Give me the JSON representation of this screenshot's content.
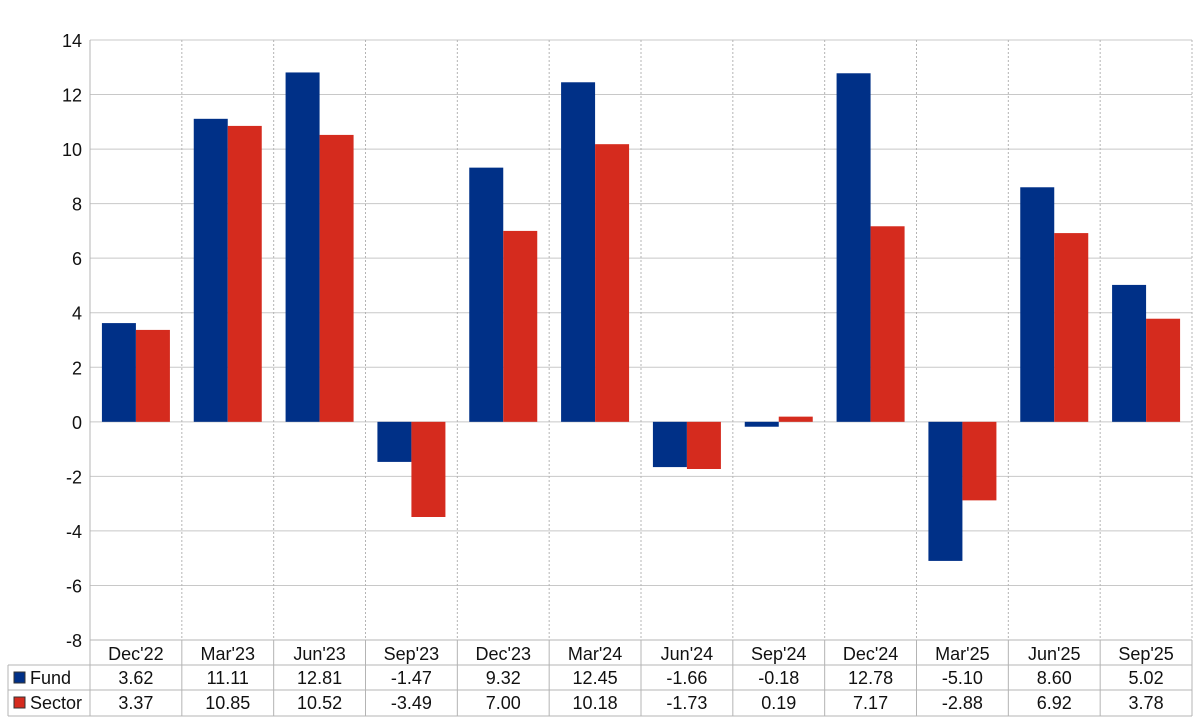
{
  "chart_data": {
    "type": "bar",
    "categories": [
      "Dec'22",
      "Mar'23",
      "Jun'23",
      "Sep'23",
      "Dec'23",
      "Mar'24",
      "Jun'24",
      "Sep'24",
      "Dec'24",
      "Mar'25",
      "Jun'25",
      "Sep'25"
    ],
    "series": [
      {
        "name": "Fund",
        "color": "#003087",
        "values": [
          3.62,
          11.11,
          12.81,
          -1.47,
          9.32,
          12.45,
          -1.66,
          -0.18,
          12.78,
          -5.1,
          8.6,
          5.02
        ]
      },
      {
        "name": "Sector",
        "color": "#d52b1e",
        "values": [
          3.37,
          10.85,
          10.52,
          -3.49,
          7.0,
          10.18,
          -1.73,
          0.19,
          7.17,
          -2.88,
          6.92,
          3.78
        ]
      }
    ],
    "table_values": [
      [
        "3.62",
        "11.11",
        "12.81",
        "-1.47",
        "9.32",
        "12.45",
        "-1.66",
        "-0.18",
        "12.78",
        "-5.10",
        "8.60",
        "5.02"
      ],
      [
        "3.37",
        "10.85",
        "10.52",
        "-3.49",
        "7.00",
        "10.18",
        "-1.73",
        "0.19",
        "7.17",
        "-2.88",
        "6.92",
        "3.78"
      ]
    ],
    "ylim": [
      -8,
      14
    ],
    "yticks": [
      14,
      12,
      10,
      8,
      6,
      4,
      2,
      0,
      -2,
      -4,
      -6,
      -8
    ],
    "ytick_labels": [
      "14",
      "12",
      "10",
      "8",
      "6",
      "4",
      "2",
      "0",
      "-2",
      "-4",
      "-6",
      "-8"
    ],
    "grid": true,
    "negative_value_color": "#ff0000",
    "data_table": true
  }
}
